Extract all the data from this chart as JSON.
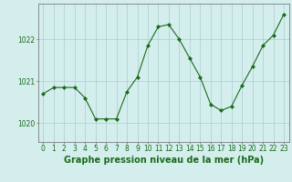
{
  "x": [
    0,
    1,
    2,
    3,
    4,
    5,
    6,
    7,
    8,
    9,
    10,
    11,
    12,
    13,
    14,
    15,
    16,
    17,
    18,
    19,
    20,
    21,
    22,
    23
  ],
  "y": [
    1020.7,
    1020.85,
    1020.85,
    1020.85,
    1020.6,
    1020.1,
    1020.1,
    1020.1,
    1020.75,
    1021.1,
    1021.85,
    1022.3,
    1022.35,
    1022.0,
    1021.55,
    1021.1,
    1020.45,
    1020.3,
    1020.4,
    1020.9,
    1021.35,
    1021.85,
    1022.1,
    1022.6
  ],
  "line_color": "#1a6b1a",
  "marker": "D",
  "marker_size": 2.2,
  "bg_color": "#d4eeee",
  "grid_color": "#aacccc",
  "axis_color": "#666666",
  "label_color": "#1a6b1a",
  "title": "Graphe pression niveau de la mer (hPa)",
  "ylabel_ticks": [
    1020,
    1021,
    1022
  ],
  "ylim": [
    1019.55,
    1022.85
  ],
  "xlim": [
    -0.5,
    23.5
  ],
  "title_fontsize": 7.0,
  "tick_fontsize": 5.5
}
